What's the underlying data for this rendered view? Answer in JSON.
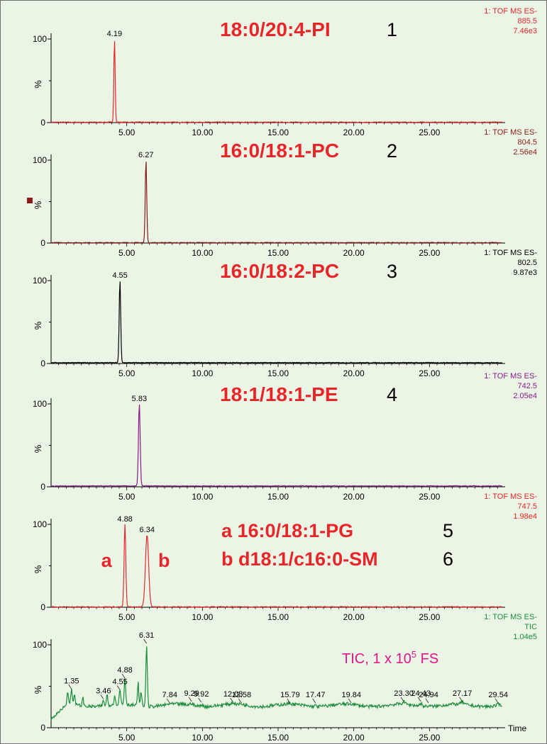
{
  "colors": {
    "background": "#ebf5e6",
    "border": "#6f6f6f",
    "axis": "#000000",
    "compound_red": "#e8262a",
    "tic_pink": "#e0148a",
    "tic_green": "#1b8c3a",
    "trace1": "#e8262a",
    "trace2": "#8b1a1a",
    "trace3": "#000000",
    "trace4": "#8a1a8a",
    "trace5": "#e8262a",
    "trace6": "#1b8c3a"
  },
  "chart_data": [
    {
      "type": "line",
      "xlim": [
        0,
        30
      ],
      "ylim": [
        0,
        100
      ],
      "x_ticks": [
        "5.00",
        "10.00",
        "15.00",
        "20.00",
        "25.00"
      ],
      "y_tick_label": "100",
      "zero_tick_label": "0",
      "ylabel": "%",
      "header": [
        "1: TOF MS ES-",
        "885.5",
        "7.46e3"
      ],
      "compound_label": "18:0/20:4-PI",
      "compound_number": "1",
      "peaks": [
        {
          "x": 4.19,
          "label": "4.19",
          "height": 100,
          "width": 0.06
        }
      ],
      "baseline": 0.5
    },
    {
      "type": "line",
      "xlim": [
        0,
        30
      ],
      "ylim": [
        0,
        100
      ],
      "x_ticks": [
        "5.00",
        "10.00",
        "15.00",
        "20.00",
        "25.00"
      ],
      "y_tick_label": "100",
      "zero_tick_label": "0",
      "ylabel": "%",
      "header": [
        "1: TOF MS ES-",
        "804.5",
        "2.56e4"
      ],
      "compound_label": "16:0/18:1-PC",
      "compound_number": "2",
      "peaks": [
        {
          "x": 6.27,
          "label": "6.27",
          "height": 100,
          "width": 0.07
        }
      ],
      "baseline": 0.5
    },
    {
      "type": "line",
      "xlim": [
        0,
        30
      ],
      "ylim": [
        0,
        100
      ],
      "x_ticks": [
        "5.00",
        "10.00",
        "15.00",
        "20.00",
        "25.00"
      ],
      "y_tick_label": "100",
      "zero_tick_label": "0",
      "ylabel": "%",
      "header": [
        "1: TOF MS ES-",
        "802.5",
        "9.87e3"
      ],
      "compound_label": "16:0/18:2-PC",
      "compound_number": "3",
      "peaks": [
        {
          "x": 4.55,
          "label": "4.55",
          "height": 100,
          "width": 0.07
        }
      ],
      "baseline": 1
    },
    {
      "type": "line",
      "xlim": [
        0,
        30
      ],
      "ylim": [
        0,
        100
      ],
      "x_ticks": [
        "5.00",
        "10.00",
        "15.00",
        "20.00",
        "25.00"
      ],
      "y_tick_label": "100",
      "zero_tick_label": "0",
      "ylabel": "%",
      "header": [
        "1: TOF MS ES-",
        "742.5",
        "2.05e4"
      ],
      "compound_label": "18:1/18:1-PE",
      "compound_number": "4",
      "peaks": [
        {
          "x": 5.83,
          "label": "5.83",
          "height": 100,
          "width": 0.08
        }
      ],
      "baseline": 1
    },
    {
      "type": "line",
      "xlim": [
        0,
        30
      ],
      "ylim": [
        0,
        100
      ],
      "x_ticks": [
        "5.00",
        "10.00",
        "15.00",
        "20.00",
        "25.00"
      ],
      "y_tick_label": "100",
      "zero_tick_label": "0",
      "ylabel": "%",
      "header": [
        "1: TOF MS ES-",
        "747.5",
        "1.98e4"
      ],
      "peak_letters": [
        {
          "letter": "a",
          "near": 4.88
        },
        {
          "letter": "b",
          "near": 6.34
        }
      ],
      "compound_lines": [
        {
          "text": "a  16:0/18:1-PG",
          "number": "5"
        },
        {
          "text": "b  d18:1/c16:0-SM",
          "number": "6"
        }
      ],
      "peaks": [
        {
          "x": 4.88,
          "label": "4.88",
          "height": 100,
          "width": 0.08
        },
        {
          "x": 6.34,
          "label": "6.34",
          "height": 87,
          "width": 0.15
        }
      ],
      "baseline": 0.5
    },
    {
      "type": "line",
      "xlim": [
        0,
        30
      ],
      "ylim": [
        0,
        100
      ],
      "x_ticks": [
        "5.00",
        "10.00",
        "15.00",
        "20.00",
        "25.00"
      ],
      "y_tick_label": "100",
      "zero_tick_label": "0",
      "ylabel": "%",
      "xlabel": "Time",
      "header": [
        "1: TOF MS ES-",
        "TIC",
        "1.04e5"
      ],
      "tic_note": {
        "prefix": "TIC, 1 x 10",
        "exp": "5",
        "suffix": " FS"
      },
      "tic_baseline": 27,
      "peaks": [
        {
          "x": 1.35,
          "label": "1.35",
          "height": 45
        },
        {
          "x": 3.46,
          "label": "3.46",
          "height": 33
        },
        {
          "x": 4.55,
          "label": "4.55",
          "height": 44
        },
        {
          "x": 4.88,
          "label": "4.88",
          "height": 58
        },
        {
          "x": 6.31,
          "label": "6.31",
          "height": 100
        },
        {
          "x": 7.84,
          "label": "7.84",
          "height": 28
        },
        {
          "x": 9.29,
          "label": "9.29",
          "height": 30
        },
        {
          "x": 9.92,
          "label": "9.92",
          "height": 29
        },
        {
          "x": 12.03,
          "label": "12.03",
          "height": 29
        },
        {
          "x": 12.58,
          "label": "12.58",
          "height": 28
        },
        {
          "x": 15.79,
          "label": "15.79",
          "height": 28
        },
        {
          "x": 17.47,
          "label": "17.47",
          "height": 28
        },
        {
          "x": 19.84,
          "label": "19.84",
          "height": 28
        },
        {
          "x": 23.3,
          "label": "23.30",
          "height": 30
        },
        {
          "x": 24.43,
          "label": "24.43",
          "height": 30
        },
        {
          "x": 24.94,
          "label": "24.94",
          "height": 28
        },
        {
          "x": 27.17,
          "label": "27.17",
          "height": 30
        },
        {
          "x": 29.54,
          "label": "29.54",
          "height": 28
        }
      ]
    }
  ]
}
